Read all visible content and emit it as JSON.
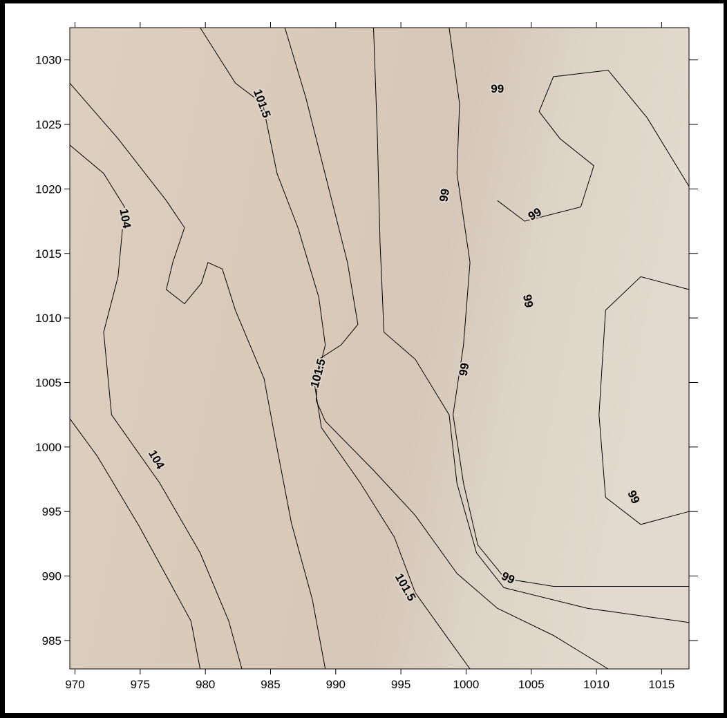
{
  "chart_data": {
    "type": "contour",
    "xlim": [
      969.6,
      1017.1
    ],
    "ylim": [
      982.8,
      1032.5
    ],
    "xticks": [
      970,
      975,
      980,
      985,
      990,
      995,
      1000,
      1005,
      1010,
      1015
    ],
    "yticks": [
      985,
      990,
      995,
      1000,
      1005,
      1010,
      1015,
      1020,
      1025,
      1030
    ],
    "lines": [
      {
        "x": [
          969.6,
          971.7,
          974.9,
          977.5,
          978.9,
          979.6
        ],
        "y": [
          1002.2,
          999.3,
          993.9,
          989.1,
          986.5,
          982.8
        ]
      },
      {
        "x": [
          969.6,
          972.2,
          973.8,
          973.3,
          972.2,
          972.8,
          976.5,
          979.6,
          981.8,
          982.8
        ],
        "y": [
          1023.4,
          1021.2,
          1018.6,
          1013.2,
          1008.9,
          1002.5,
          997.2,
          991.8,
          986.5,
          982.8
        ]
      },
      {
        "x": [
          969.6,
          973.3,
          977.0,
          978.4,
          977.5,
          977.0,
          978.4,
          979.7,
          980.2,
          981.3,
          982.3,
          984.5,
          985.5,
          986.6,
          988.2,
          989.2
        ],
        "y": [
          1028.2,
          1023.9,
          1019.1,
          1017.0,
          1014.3,
          1012.2,
          1011.1,
          1012.7,
          1014.3,
          1013.8,
          1010.6,
          1005.3,
          999.9,
          994.1,
          988.2,
          982.8
        ]
      },
      {
        "x": [
          979.6,
          982.3,
          984.4,
          985.5,
          987.1,
          988.7,
          989.2,
          988.4,
          988.9,
          991.9,
          994.5,
          996.1,
          998.8,
          1000.3
        ],
        "y": [
          1032.5,
          1028.2,
          1026.6,
          1021.2,
          1017.0,
          1011.6,
          1007.9,
          1004.7,
          1001.5,
          997.2,
          993.0,
          988.7,
          984.9,
          982.8
        ]
      },
      {
        "x": [
          986.1,
          987.7,
          989.3,
          990.9,
          991.7,
          990.4,
          988.7,
          988.5,
          989.2,
          992.9,
          996.1,
          999.3,
          1002.4,
          1006.7,
          1010.9
        ],
        "y": [
          1032.5,
          1027.1,
          1020.7,
          1014.3,
          1009.5,
          1007.9,
          1006.8,
          1003.6,
          1002.0,
          998.2,
          994.7,
          990.2,
          987.5,
          985.4,
          982.8
        ]
      },
      {
        "x": [
          992.9,
          993.2,
          993.4,
          993.7,
          996.1,
          998.7,
          999.3,
          1000.8,
          1002.9,
          1009.3,
          1017.1
        ],
        "y": [
          1032.5,
          1023.9,
          1015.9,
          1008.9,
          1006.8,
          1002.5,
          997.2,
          991.8,
          989.1,
          987.5,
          986.4
        ]
      },
      {
        "x": [
          998.7,
          999.5,
          999.3,
          1000.3,
          999.8,
          999.0,
          999.8,
          1000.9,
          1003.0,
          1006.7,
          1017.1
        ],
        "y": [
          1032.5,
          1026.6,
          1021.2,
          1014.3,
          1007.9,
          1002.5,
          997.2,
          992.4,
          989.8,
          989.2,
          989.2
        ]
      },
      {
        "x": [
          1017.1,
          1013.4,
          1010.7,
          1010.2,
          1010.7,
          1013.4,
          1017.1
        ],
        "y": [
          1012.2,
          1013.2,
          1010.6,
          1002.5,
          996.1,
          994.0,
          995.0
        ]
      },
      {
        "x": [
          1017.1,
          1013.9,
          1010.9,
          1006.7,
          1005.6,
          1007.2,
          1009.8,
          1008.8,
          1004.5,
          1002.4
        ],
        "y": [
          1020.2,
          1025.5,
          1029.2,
          1028.7,
          1026.0,
          1023.9,
          1021.8,
          1018.6,
          1017.5,
          1019.1
        ]
      }
    ],
    "contour_labels": [
      {
        "level": 104,
        "x": 976.2,
        "y": 999.0
      },
      {
        "level": 104,
        "x": 973.8,
        "y": 1017.7
      },
      {
        "level": 101.5,
        "x": 984.3,
        "y": 1026.6
      },
      {
        "level": 101.5,
        "x": 995.3,
        "y": 989.1
      },
      {
        "level": 101.5,
        "x": 988.7,
        "y": 1005.7
      },
      {
        "level": 99,
        "x": 1003.2,
        "y": 989.8
      },
      {
        "level": 99,
        "x": 1002.4,
        "y": 1027.7
      },
      {
        "level": 99,
        "x": 998.4,
        "y": 1019.5
      },
      {
        "level": 99,
        "x": 1005.3,
        "y": 1018.0
      },
      {
        "level": 99,
        "x": 1004.7,
        "y": 1011.3
      },
      {
        "level": 99,
        "x": 999.9,
        "y": 1006.0
      },
      {
        "level": 99,
        "x": 1012.8,
        "y": 996.1
      }
    ]
  }
}
